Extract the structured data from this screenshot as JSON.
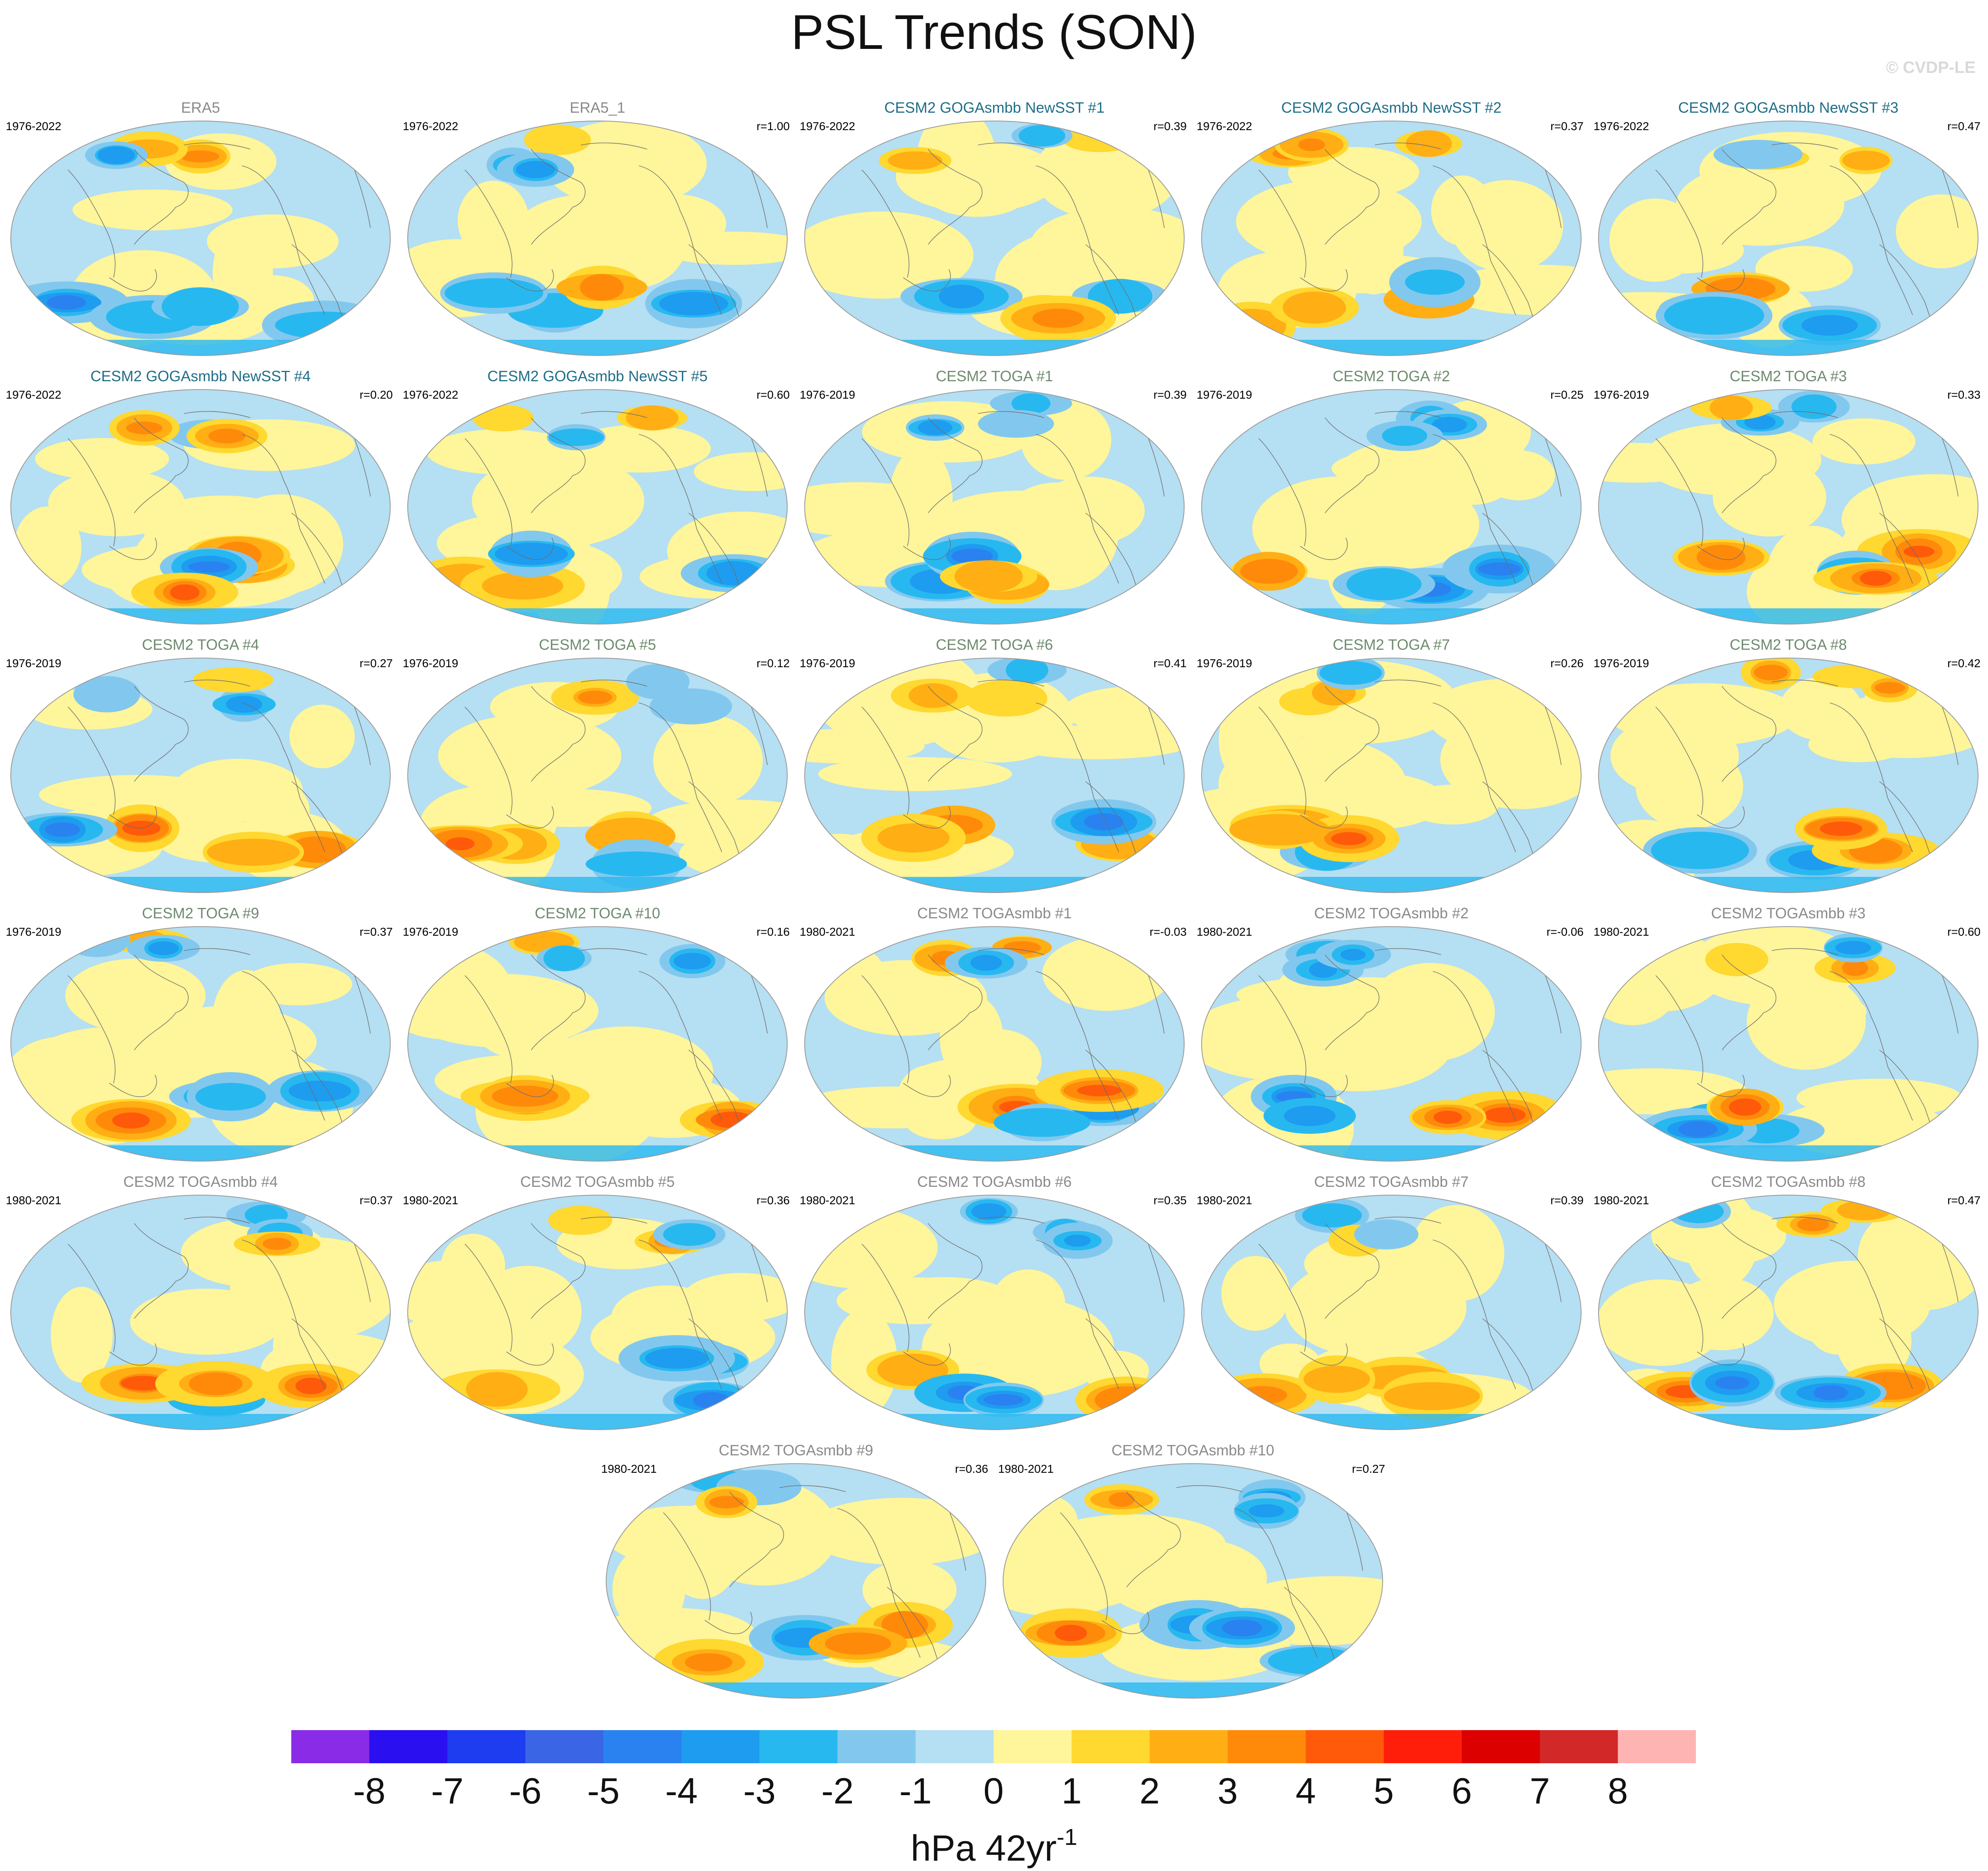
{
  "title": "PSL Trends (SON)",
  "watermark": "© CVDP-LE",
  "colors": {
    "obs_title": "#8a8a8a",
    "goga_title": "#1f6e87",
    "toga_title": "#6e8a6e",
    "togasmbb_title": "#8a8a8a",
    "coast": "#6d6d6d",
    "ocean_base": "#b5dff2"
  },
  "panels": [
    {
      "title": "ERA5",
      "years": "1976-2022",
      "r": "",
      "group": "obs"
    },
    {
      "title": "ERA5_1",
      "years": "1976-2022",
      "r": "r=1.00",
      "group": "obs"
    },
    {
      "title": "CESM2 GOGAsmbb NewSST #1",
      "years": "1976-2022",
      "r": "r=0.39",
      "group": "goga"
    },
    {
      "title": "CESM2 GOGAsmbb NewSST #2",
      "years": "1976-2022",
      "r": "r=0.37",
      "group": "goga"
    },
    {
      "title": "CESM2 GOGAsmbb NewSST #3",
      "years": "1976-2022",
      "r": "r=0.47",
      "group": "goga"
    },
    {
      "title": "CESM2 GOGAsmbb NewSST #4",
      "years": "1976-2022",
      "r": "r=0.20",
      "group": "goga"
    },
    {
      "title": "CESM2 GOGAsmbb NewSST #5",
      "years": "1976-2022",
      "r": "r=0.60",
      "group": "goga"
    },
    {
      "title": "CESM2 TOGA #1",
      "years": "1976-2019",
      "r": "r=0.39",
      "group": "toga"
    },
    {
      "title": "CESM2 TOGA #2",
      "years": "1976-2019",
      "r": "r=0.25",
      "group": "toga"
    },
    {
      "title": "CESM2 TOGA #3",
      "years": "1976-2019",
      "r": "r=0.33",
      "group": "toga"
    },
    {
      "title": "CESM2 TOGA #4",
      "years": "1976-2019",
      "r": "r=0.27",
      "group": "toga"
    },
    {
      "title": "CESM2 TOGA #5",
      "years": "1976-2019",
      "r": "r=0.12",
      "group": "toga"
    },
    {
      "title": "CESM2 TOGA #6",
      "years": "1976-2019",
      "r": "r=0.41",
      "group": "toga"
    },
    {
      "title": "CESM2 TOGA #7",
      "years": "1976-2019",
      "r": "r=0.26",
      "group": "toga"
    },
    {
      "title": "CESM2 TOGA #8",
      "years": "1976-2019",
      "r": "r=0.42",
      "group": "toga"
    },
    {
      "title": "CESM2 TOGA #9",
      "years": "1976-2019",
      "r": "r=0.37",
      "group": "toga"
    },
    {
      "title": "CESM2 TOGA #10",
      "years": "1976-2019",
      "r": "r=0.16",
      "group": "toga"
    },
    {
      "title": "CESM2 TOGAsmbb #1",
      "years": "1980-2021",
      "r": "r=-0.03",
      "group": "togasmbb"
    },
    {
      "title": "CESM2 TOGAsmbb #2",
      "years": "1980-2021",
      "r": "r=-0.06",
      "group": "togasmbb"
    },
    {
      "title": "CESM2 TOGAsmbb #3",
      "years": "1980-2021",
      "r": "r=0.60",
      "group": "togasmbb"
    },
    {
      "title": "CESM2 TOGAsmbb #4",
      "years": "1980-2021",
      "r": "r=0.37",
      "group": "togasmbb"
    },
    {
      "title": "CESM2 TOGAsmbb #5",
      "years": "1980-2021",
      "r": "r=0.36",
      "group": "togasmbb"
    },
    {
      "title": "CESM2 TOGAsmbb #6",
      "years": "1980-2021",
      "r": "r=0.35",
      "group": "togasmbb"
    },
    {
      "title": "CESM2 TOGAsmbb #7",
      "years": "1980-2021",
      "r": "r=0.39",
      "group": "togasmbb"
    },
    {
      "title": "CESM2 TOGAsmbb #8",
      "years": "1980-2021",
      "r": "r=0.47",
      "group": "togasmbb"
    },
    {
      "title": "CESM2 TOGAsmbb #9",
      "years": "1980-2021",
      "r": "r=0.36",
      "group": "togasmbb"
    },
    {
      "title": "CESM2 TOGAsmbb #10",
      "years": "1980-2021",
      "r": "r=0.27",
      "group": "togasmbb"
    }
  ],
  "colorbar": {
    "labels": [
      "-8",
      "-7",
      "-6",
      "-5",
      "-4",
      "-3",
      "-2",
      "-1",
      "0",
      "1",
      "2",
      "3",
      "4",
      "5",
      "6",
      "7",
      "8"
    ],
    "colors": [
      "#8a2be8",
      "#2a0ff0",
      "#1e3cf0",
      "#3a66e6",
      "#2a82f0",
      "#1e9cf0",
      "#28b8f0",
      "#82c8ee",
      "#b5dff2",
      "#fff59a",
      "#ffd830",
      "#ffae14",
      "#ff8a0a",
      "#ff5a0a",
      "#ff1e0a",
      "#dc0000",
      "#d22828",
      "#ffb4b4"
    ],
    "units_main": "hPa 42yr",
    "units_sup": "-1"
  }
}
